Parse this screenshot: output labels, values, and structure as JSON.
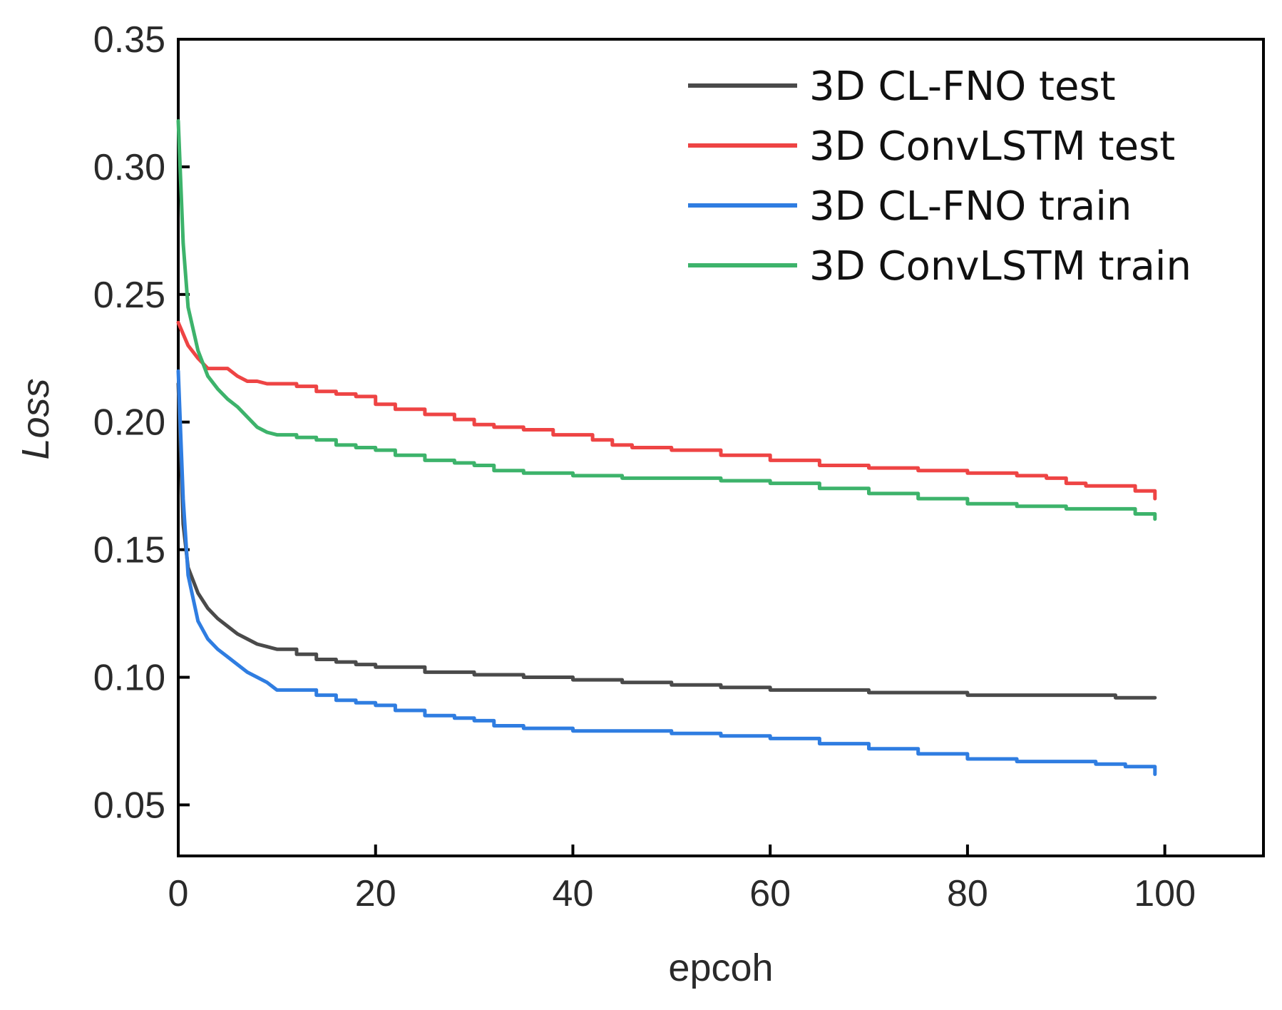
{
  "chart_data": {
    "type": "line",
    "title": "",
    "xlabel": "epcoh",
    "ylabel": "Loss",
    "xlim": [
      0,
      110
    ],
    "ylim": [
      0.03,
      0.35
    ],
    "xticks": [
      0,
      20,
      40,
      60,
      80,
      100
    ],
    "yticks": [
      0.05,
      0.1,
      0.15,
      0.2,
      0.25,
      0.3,
      0.35
    ],
    "xtick_labels": [
      "0",
      "20",
      "40",
      "60",
      "80",
      "100"
    ],
    "ytick_labels": [
      "0.05",
      "0.10",
      "0.15",
      "0.20",
      "0.25",
      "0.30",
      "0.35"
    ],
    "grid": false,
    "legend_position": "top-right",
    "series": [
      {
        "name": "3D CL-FNO test",
        "color": "#4a4a4a",
        "x": [
          0,
          0.5,
          1,
          2,
          3,
          4,
          5,
          6,
          7,
          8,
          9,
          10,
          12,
          14,
          16,
          18,
          20,
          25,
          30,
          35,
          40,
          45,
          50,
          55,
          60,
          65,
          70,
          75,
          80,
          85,
          90,
          95,
          99
        ],
        "y": [
          0.215,
          0.16,
          0.143,
          0.133,
          0.127,
          0.123,
          0.12,
          0.117,
          0.115,
          0.113,
          0.112,
          0.111,
          0.109,
          0.107,
          0.106,
          0.105,
          0.104,
          0.102,
          0.101,
          0.1,
          0.099,
          0.098,
          0.097,
          0.096,
          0.095,
          0.095,
          0.094,
          0.094,
          0.093,
          0.093,
          0.093,
          0.092,
          0.092
        ]
      },
      {
        "name": "3D ConvLSTM test",
        "color": "#ee4444",
        "x": [
          0,
          1,
          2,
          3,
          4,
          5,
          6,
          7,
          8,
          9,
          10,
          12,
          14,
          16,
          18,
          20,
          22,
          25,
          28,
          30,
          32,
          35,
          38,
          40,
          42,
          44,
          46,
          50,
          55,
          60,
          65,
          70,
          75,
          80,
          85,
          88,
          90,
          92,
          95,
          97,
          99
        ],
        "y": [
          0.239,
          0.23,
          0.225,
          0.221,
          0.221,
          0.221,
          0.218,
          0.216,
          0.216,
          0.215,
          0.215,
          0.214,
          0.212,
          0.211,
          0.21,
          0.207,
          0.205,
          0.203,
          0.201,
          0.199,
          0.198,
          0.197,
          0.195,
          0.195,
          0.193,
          0.191,
          0.19,
          0.189,
          0.187,
          0.185,
          0.183,
          0.182,
          0.181,
          0.18,
          0.179,
          0.178,
          0.176,
          0.175,
          0.175,
          0.173,
          0.17
        ]
      },
      {
        "name": "3D CL-FNO train",
        "color": "#2f7de1",
        "x": [
          0,
          0.5,
          1,
          2,
          3,
          4,
          5,
          6,
          7,
          8,
          9,
          10,
          12,
          14,
          16,
          18,
          20,
          22,
          25,
          28,
          30,
          32,
          35,
          40,
          45,
          50,
          55,
          60,
          65,
          70,
          75,
          80,
          85,
          90,
          93,
          96,
          99
        ],
        "y": [
          0.22,
          0.17,
          0.14,
          0.122,
          0.115,
          0.111,
          0.108,
          0.105,
          0.102,
          0.1,
          0.098,
          0.095,
          0.095,
          0.093,
          0.091,
          0.09,
          0.089,
          0.087,
          0.085,
          0.084,
          0.083,
          0.081,
          0.08,
          0.079,
          0.079,
          0.078,
          0.077,
          0.076,
          0.074,
          0.072,
          0.07,
          0.068,
          0.067,
          0.067,
          0.066,
          0.065,
          0.062
        ]
      },
      {
        "name": "3D ConvLSTM train",
        "color": "#3db36b",
        "x": [
          0,
          0.5,
          1,
          2,
          3,
          4,
          5,
          6,
          7,
          8,
          9,
          10,
          12,
          14,
          16,
          18,
          20,
          22,
          25,
          28,
          30,
          32,
          35,
          40,
          45,
          50,
          55,
          60,
          65,
          70,
          75,
          80,
          85,
          90,
          95,
          97,
          99
        ],
        "y": [
          0.318,
          0.27,
          0.245,
          0.228,
          0.218,
          0.213,
          0.209,
          0.206,
          0.202,
          0.198,
          0.196,
          0.195,
          0.194,
          0.193,
          0.191,
          0.19,
          0.189,
          0.187,
          0.185,
          0.184,
          0.183,
          0.181,
          0.18,
          0.179,
          0.178,
          0.178,
          0.177,
          0.176,
          0.174,
          0.172,
          0.17,
          0.168,
          0.167,
          0.166,
          0.166,
          0.164,
          0.162
        ]
      }
    ]
  }
}
